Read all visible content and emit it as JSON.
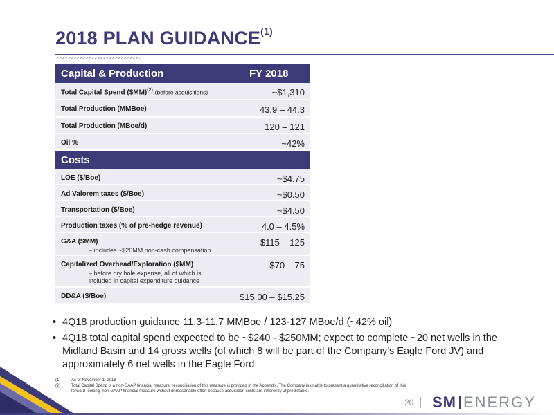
{
  "title": {
    "text": "2018 PLAN GUIDANCE",
    "superscript": "(1)"
  },
  "table": {
    "capital_header": {
      "label": "Capital & Production",
      "column": "FY 2018"
    },
    "capital_rows": [
      {
        "label": "Total Capital Spend ($MM)",
        "sup": "(2)",
        "note": "(before acquisitions)",
        "value": "~$1,310"
      },
      {
        "label": "Total Production (MMBoe)",
        "value": "43.9 – 44.3"
      },
      {
        "label": "Total Production (MBoe/d)",
        "value": "120 – 121"
      },
      {
        "label": "Oil %",
        "value": "~42%"
      }
    ],
    "costs_header": {
      "label": "Costs"
    },
    "cost_rows": [
      {
        "label": "LOE ($/Boe)",
        "value": "~$4.75"
      },
      {
        "label": "Ad Valorem taxes ($/Boe)",
        "value": "~$0.50"
      },
      {
        "label": "Transportation ($/Boe)",
        "value": "~$4.50"
      },
      {
        "label": "Production taxes (% of pre-hedge revenue)",
        "value": "4.0 – 4.5%"
      },
      {
        "label": "G&A ($MM)",
        "sub": "– includes ~$20MM non-cash compensation",
        "value": "$115 – 125"
      },
      {
        "label": "Capitalized Overhead/Exploration ($MM)",
        "sub": "– before dry hole expense, all of which is",
        "sub2": "included in capital expenditure guidance",
        "value": "$70 – 75"
      },
      {
        "label": "DD&A ($/Boe)",
        "value": "$15.00 – $15.25"
      }
    ]
  },
  "bullets": [
    "4Q18 production guidance 11.3-11.7 MMBoe / 123-127 MBoe/d (~42% oil)",
    "4Q18 total capital spend expected to be ~$240 - $250MM; expect to complete ~20 net wells in the Midland Basin and 14 gross wells (of which 8 will be part of the Company’s Eagle Ford JV) and approximately 6 net wells in the Eagle Ford"
  ],
  "bullet_symbol": "•",
  "footnotes": [
    {
      "num": "(1)",
      "text": "As of November 1, 2018"
    },
    {
      "num": "(2)",
      "text": "Total Capital Spend is a non-GAAP financial measure; reconciliation of this measure is provided in the Appendix. The Company is unable to present a quantitative reconciliation of this forward-looking, non-GAAP financial measure without unreasonable effort because acquisition costs are inherently unpredictable."
    }
  ],
  "page_number": "20",
  "logo": {
    "left": "SM",
    "right": "ENERGY"
  },
  "colors": {
    "brand": "#3d3a78",
    "row_bg": "#ececf2",
    "accent_yellow": "#f3c21b",
    "logo_gray": "#8a8f99"
  }
}
